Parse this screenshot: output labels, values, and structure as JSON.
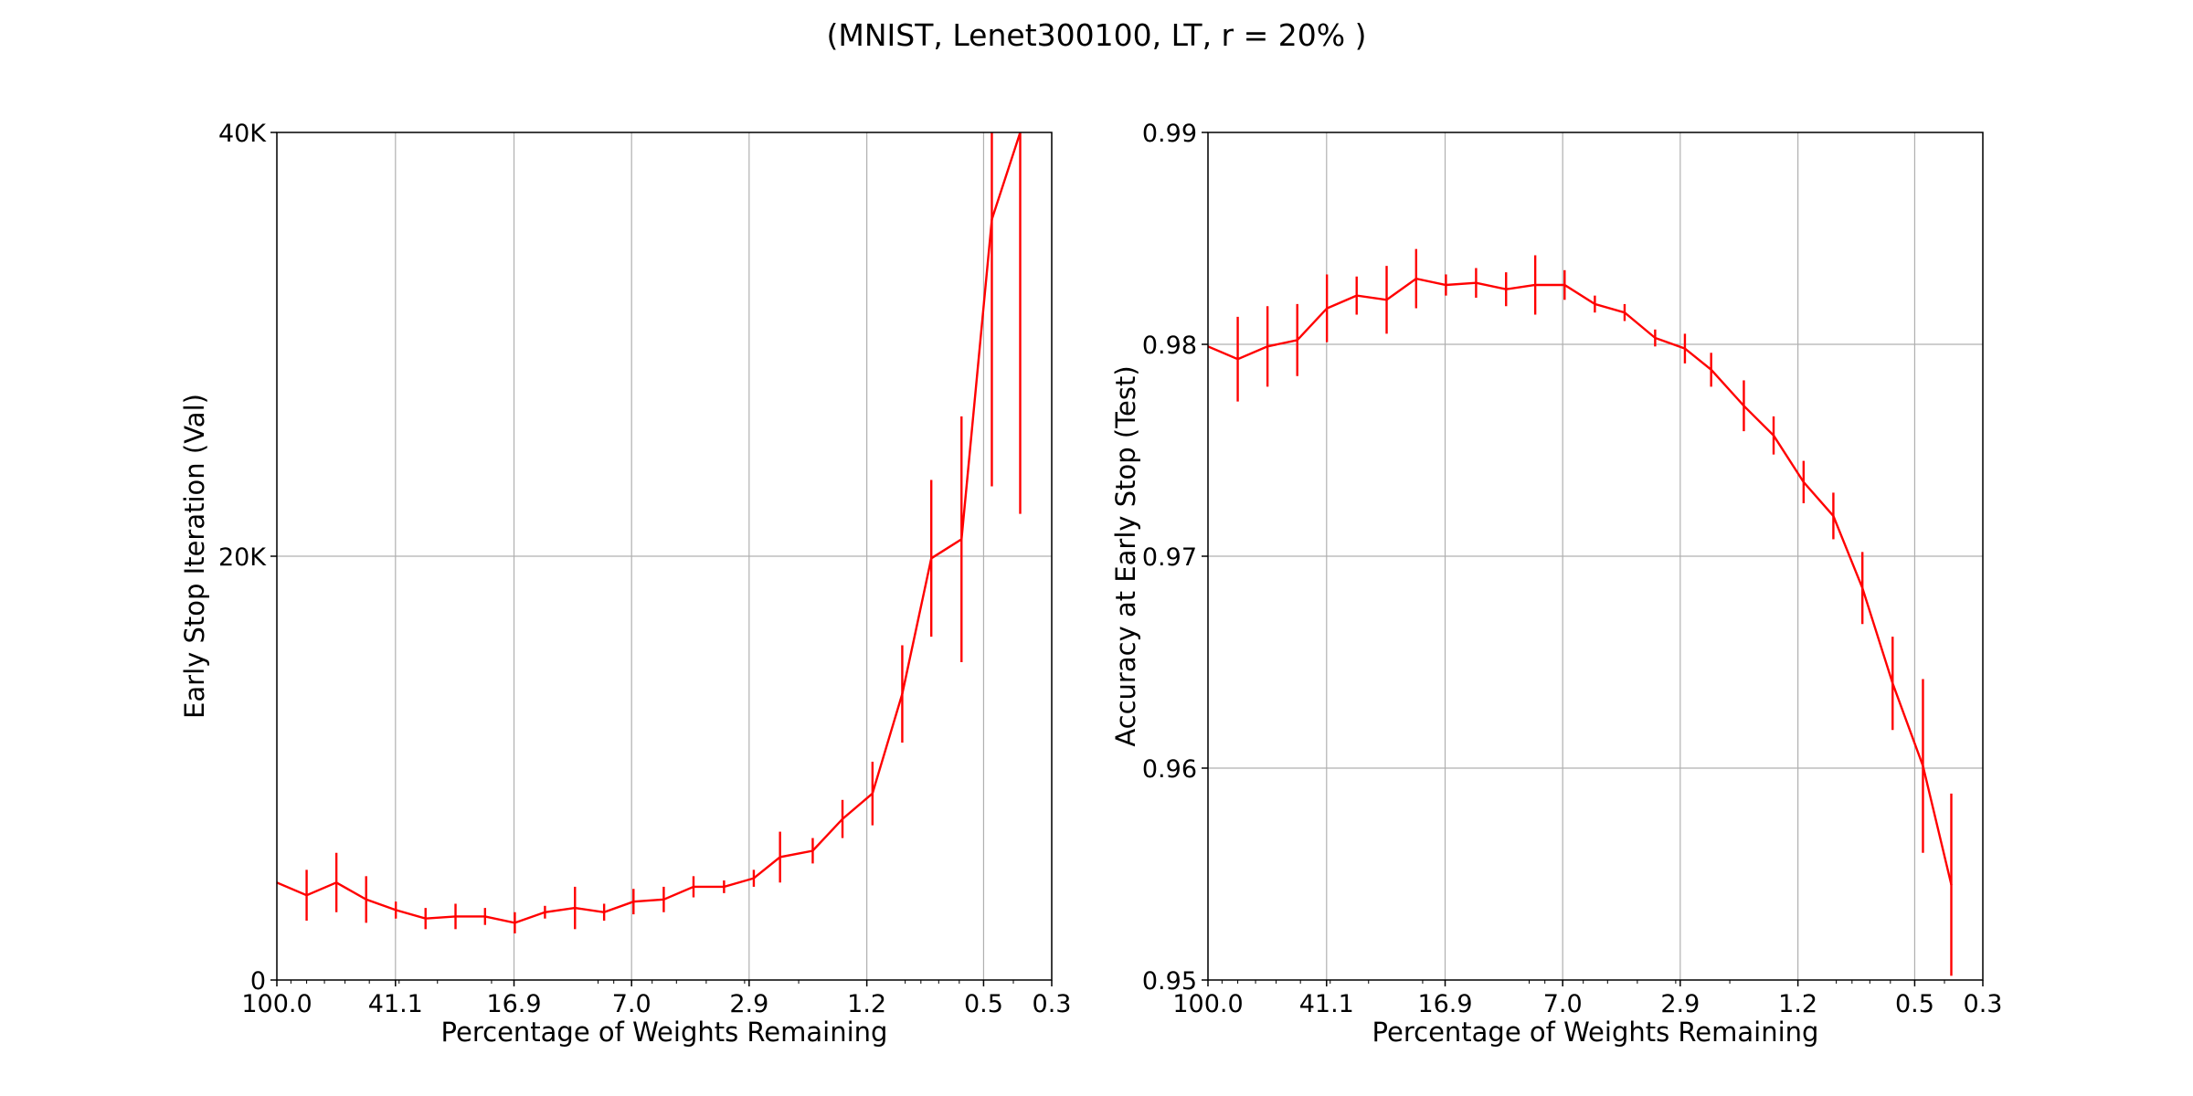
{
  "figure": {
    "title": "(MNIST, Lenet300100, LT, r = 20% )"
  },
  "chart_data": [
    {
      "type": "line",
      "xlabel": "Percentage of Weights Remaining",
      "ylabel": "Early Stop Iteration (Val)",
      "xscale": "log-reversed",
      "xlim": [
        100.0,
        0.3
      ],
      "ylim": [
        0,
        40000
      ],
      "xticks": [
        {
          "value": 100.0,
          "label": "100.0"
        },
        {
          "value": 41.1,
          "label": "41.1"
        },
        {
          "value": 16.9,
          "label": "16.9"
        },
        {
          "value": 7.0,
          "label": "7.0"
        },
        {
          "value": 2.9,
          "label": "2.9"
        },
        {
          "value": 1.2,
          "label": "1.2"
        },
        {
          "value": 0.5,
          "label": "0.5"
        },
        {
          "value": 0.3,
          "label": "0.3"
        }
      ],
      "yticks": [
        {
          "value": 0,
          "label": "0"
        },
        {
          "value": 20000,
          "label": "20K"
        },
        {
          "value": 40000,
          "label": "40K"
        }
      ],
      "grid": true,
      "color": "#ff0000",
      "series": [
        {
          "x": [
            100.0,
            80.0,
            64.0,
            51.2,
            41.0,
            32.8,
            26.2,
            21.0,
            16.8,
            13.4,
            10.7,
            8.6,
            6.9,
            5.5,
            4.4,
            3.5,
            2.8,
            2.3,
            1.8,
            1.44,
            1.15,
            0.92,
            0.74,
            0.59,
            0.47,
            0.38
          ],
          "y": [
            4600,
            4000,
            4600,
            3800,
            3300,
            2900,
            3000,
            3000,
            2700,
            3200,
            3400,
            3200,
            3700,
            3800,
            4400,
            4400,
            4800,
            5800,
            6100,
            7600,
            8800,
            13500,
            19900,
            20800,
            35900,
            40000
          ],
          "err": [
            0,
            1200,
            1400,
            1100,
            400,
            500,
            600,
            400,
            500,
            300,
            1000,
            400,
            600,
            600,
            500,
            300,
            400,
            1200,
            600,
            900,
            1500,
            2300,
            3700,
            5800,
            12600,
            18000
          ]
        }
      ]
    },
    {
      "type": "line",
      "xlabel": "Percentage of Weights Remaining",
      "ylabel": "Accuracy at Early Stop (Test)",
      "xscale": "log-reversed",
      "xlim": [
        100.0,
        0.3
      ],
      "ylim": [
        0.95,
        0.99
      ],
      "xticks": [
        {
          "value": 100.0,
          "label": "100.0"
        },
        {
          "value": 41.1,
          "label": "41.1"
        },
        {
          "value": 16.9,
          "label": "16.9"
        },
        {
          "value": 7.0,
          "label": "7.0"
        },
        {
          "value": 2.9,
          "label": "2.9"
        },
        {
          "value": 1.2,
          "label": "1.2"
        },
        {
          "value": 0.5,
          "label": "0.5"
        },
        {
          "value": 0.3,
          "label": "0.3"
        }
      ],
      "yticks": [
        {
          "value": 0.95,
          "label": "0.95"
        },
        {
          "value": 0.96,
          "label": "0.96"
        },
        {
          "value": 0.97,
          "label": "0.97"
        },
        {
          "value": 0.98,
          "label": "0.98"
        },
        {
          "value": 0.99,
          "label": "0.99"
        }
      ],
      "grid": true,
      "color": "#ff0000",
      "series": [
        {
          "x": [
            100.0,
            80.0,
            64.0,
            51.2,
            41.0,
            32.8,
            26.2,
            21.0,
            16.8,
            13.4,
            10.7,
            8.6,
            6.9,
            5.5,
            4.4,
            3.5,
            2.8,
            2.3,
            1.8,
            1.44,
            1.15,
            0.92,
            0.74,
            0.59,
            0.47,
            0.38
          ],
          "y": [
            0.9799,
            0.9793,
            0.9799,
            0.9802,
            0.9817,
            0.9823,
            0.9821,
            0.9831,
            0.9828,
            0.9829,
            0.9826,
            0.9828,
            0.9828,
            0.9819,
            0.9815,
            0.9803,
            0.9798,
            0.9788,
            0.9771,
            0.9757,
            0.9735,
            0.9719,
            0.9685,
            0.964,
            0.9601,
            0.9545
          ],
          "err": [
            0,
            0.002,
            0.0019,
            0.0017,
            0.0016,
            0.0009,
            0.0016,
            0.0014,
            0.0005,
            0.0007,
            0.0008,
            0.0014,
            0.0007,
            0.0004,
            0.0004,
            0.0004,
            0.0007,
            0.0008,
            0.0012,
            0.0009,
            0.001,
            0.0011,
            0.0017,
            0.0022,
            0.0041,
            0.0043
          ]
        }
      ]
    }
  ]
}
